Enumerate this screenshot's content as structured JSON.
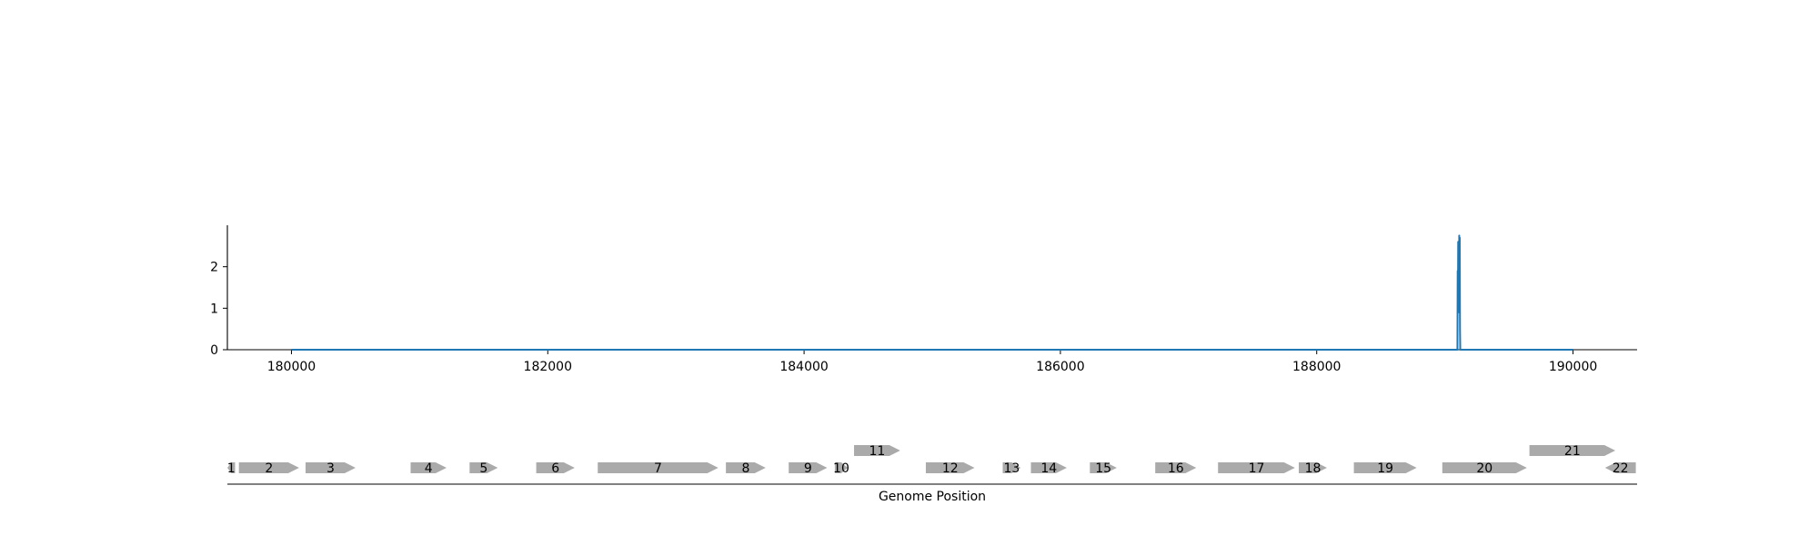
{
  "chart_data": [
    {
      "type": "line",
      "title": "",
      "xlabel": "",
      "ylabel": "",
      "xlim": [
        179500,
        190500
      ],
      "ylim": [
        0,
        3.0
      ],
      "grid": false,
      "x_ticks": [
        180000,
        182000,
        184000,
        186000,
        188000,
        190000
      ],
      "x_tick_labels": [
        "180000",
        "182000",
        "184000",
        "186000",
        "188000",
        "190000"
      ],
      "y_ticks": [
        0,
        1,
        2
      ],
      "y_tick_labels": [
        "0",
        "1",
        "2"
      ],
      "color": "#1f77b4",
      "series": [
        {
          "x": [
            180000,
            189095,
            189098,
            189100,
            189102,
            189104,
            189106,
            189108,
            189110,
            189112,
            189114,
            189116,
            189118,
            189120,
            189122,
            189124,
            190000
          ],
          "y": [
            0,
            0,
            0,
            1.9,
            1.1,
            2.6,
            1.5,
            2.5,
            0.9,
            2.75,
            1.2,
            2.7,
            0.5,
            0,
            0,
            0,
            0
          ]
        }
      ]
    },
    {
      "type": "gene-track",
      "xlabel": "Genome Position",
      "xlim": [
        179500,
        190500
      ],
      "color": "#aaaaaa",
      "genes": [
        {
          "label": "1",
          "start": 179500,
          "end": 179560,
          "strand": -1,
          "row": 0
        },
        {
          "label": "2",
          "start": 179590,
          "end": 180060,
          "strand": 1,
          "row": 0
        },
        {
          "label": "3",
          "start": 180110,
          "end": 180500,
          "strand": 1,
          "row": 0
        },
        {
          "label": "4",
          "start": 180930,
          "end": 181210,
          "strand": 1,
          "row": 0
        },
        {
          "label": "5",
          "start": 181390,
          "end": 181610,
          "strand": 1,
          "row": 0
        },
        {
          "label": "6",
          "start": 181910,
          "end": 182210,
          "strand": 1,
          "row": 0
        },
        {
          "label": "7",
          "start": 182390,
          "end": 183330,
          "strand": 1,
          "row": 0
        },
        {
          "label": "8",
          "start": 183390,
          "end": 183700,
          "strand": 1,
          "row": 0
        },
        {
          "label": "9",
          "start": 183880,
          "end": 184180,
          "strand": 1,
          "row": 0
        },
        {
          "label": "10",
          "start": 184240,
          "end": 184340,
          "strand": 1,
          "row": 0
        },
        {
          "label": "11",
          "start": 184390,
          "end": 184750,
          "strand": 1,
          "row": 1
        },
        {
          "label": "12",
          "start": 184950,
          "end": 185330,
          "strand": 1,
          "row": 0
        },
        {
          "label": "13",
          "start": 185550,
          "end": 185690,
          "strand": 1,
          "row": 0
        },
        {
          "label": "14",
          "start": 185770,
          "end": 186050,
          "strand": 1,
          "row": 0
        },
        {
          "label": "15",
          "start": 186230,
          "end": 186440,
          "strand": 1,
          "row": 0
        },
        {
          "label": "16",
          "start": 186740,
          "end": 187060,
          "strand": 1,
          "row": 0
        },
        {
          "label": "17",
          "start": 187230,
          "end": 187830,
          "strand": 1,
          "row": 0
        },
        {
          "label": "18",
          "start": 187860,
          "end": 188080,
          "strand": 1,
          "row": 0
        },
        {
          "label": "19",
          "start": 188290,
          "end": 188780,
          "strand": 1,
          "row": 0
        },
        {
          "label": "20",
          "start": 188980,
          "end": 189640,
          "strand": 1,
          "row": 0
        },
        {
          "label": "21",
          "start": 189660,
          "end": 190330,
          "strand": 1,
          "row": 1
        },
        {
          "label": "22",
          "start": 190250,
          "end": 190490,
          "strand": -1,
          "row": 0
        }
      ]
    }
  ]
}
